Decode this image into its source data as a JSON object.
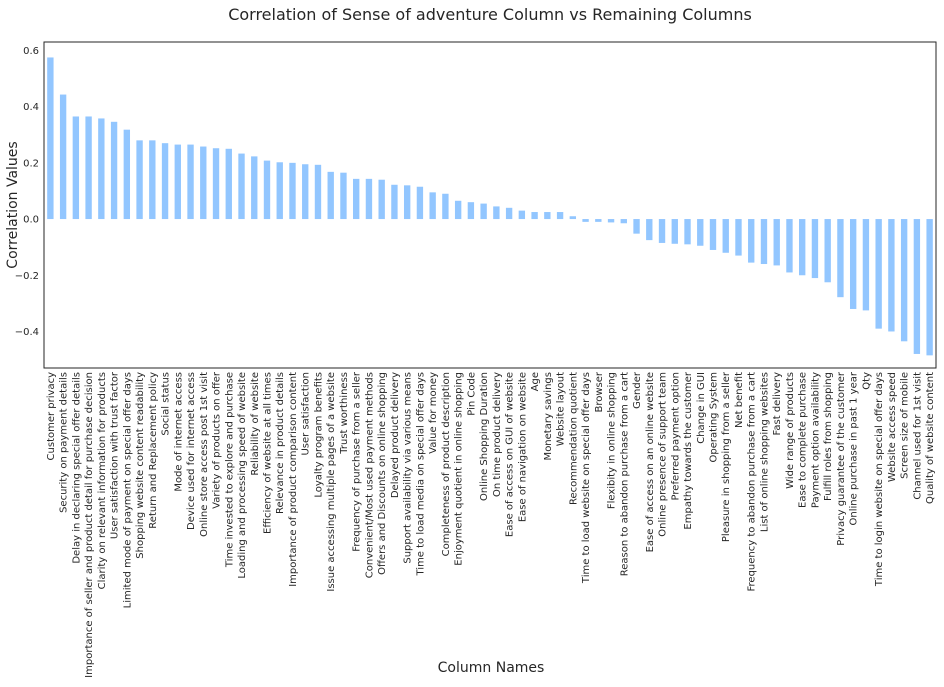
{
  "chart_data": {
    "type": "bar",
    "title": "Correlation of Sense of adventure Column vs Remaining Columns",
    "xlabel": "Column Names",
    "ylabel": "Correlation Values",
    "ylim": [
      -0.53,
      0.63
    ],
    "yticks": [
      "0.6",
      "0.4",
      "0.2",
      "0.0",
      "−0.2",
      "−0.4"
    ],
    "ytick_values": [
      0.6,
      0.4,
      0.2,
      0.0,
      -0.2,
      -0.4
    ],
    "grid": false,
    "bar_color": "#92c6ff",
    "categories": [
      "Customer privacy",
      "Security on payment details",
      "Delay in declaring special offer details",
      "Importance of seller and product detail for purchase decision",
      "Clarity on relevant information for products",
      "User satisfaction with trust factor",
      "Limited mode of payment on special offer days",
      "Shopping website content readability",
      "Return and Replacement policy",
      "Social status",
      "Mode of internet access",
      "Device used for internet access",
      "Online store access post 1st visit",
      "Variety of products on offer",
      "Time invested to explore and purchase",
      "Loading and processing speed of website",
      "Reliability of website",
      "Efficiency of website at all times",
      "Relevance in product details",
      "Importance of product comparison content",
      "User satisfaction",
      "Loyalty program benefits",
      "Issue accessing multiple pages of a website",
      "Trust worthiness",
      "Frequency of purchase from a seller",
      "Convenient/Most used payment methods",
      "Offers and Discounts on online shopping",
      "Delayed product delivery",
      "Support availability via various means",
      "Time to load media on special offer days",
      "Value for money",
      "Completeness of product description",
      "Enjoyment quotient in online shopping",
      "Pin Code",
      "Online Shopping Duration",
      "On time product delivery",
      "Ease of access on GUI of website",
      "Ease of navigation on website",
      "Age",
      "Monetary savings",
      "Website layout",
      "Recommendation quotient",
      "Time to load website on special offer days",
      "Browser",
      "Flexibity in online shopping",
      "Reason to abandon purchase from a cart",
      "Gender",
      "Ease of access on an online website",
      "Online presence of support team",
      "Preferred payment option",
      "Empathy towards the customer",
      "Change in GUI",
      "Operating System",
      "Pleasure in shopping from a seller",
      "Net benefit",
      "Frequency to abandon purchase from a cart",
      "List of online shopping websites",
      "Fast delivery",
      "Wide range of products",
      "Ease to complete purchase",
      "Payment option availability",
      "Fulfill roles from shopping",
      "Privacy guarantee of the customer",
      "Online purchase in past 1 year",
      "Qty",
      "Time to login website on special offer days",
      "Website access speed",
      "Screen size of mobile",
      "Channel used for 1st visit",
      "Quality of website content"
    ],
    "values": [
      0.575,
      0.443,
      0.365,
      0.365,
      0.358,
      0.346,
      0.318,
      0.28,
      0.28,
      0.27,
      0.265,
      0.265,
      0.258,
      0.252,
      0.25,
      0.233,
      0.223,
      0.208,
      0.202,
      0.2,
      0.195,
      0.193,
      0.168,
      0.165,
      0.143,
      0.143,
      0.14,
      0.122,
      0.12,
      0.115,
      0.095,
      0.09,
      0.065,
      0.06,
      0.055,
      0.045,
      0.04,
      0.03,
      0.025,
      0.025,
      0.025,
      0.01,
      -0.01,
      -0.01,
      -0.012,
      -0.015,
      -0.052,
      -0.075,
      -0.085,
      -0.088,
      -0.09,
      -0.095,
      -0.11,
      -0.12,
      -0.13,
      -0.155,
      -0.16,
      -0.165,
      -0.19,
      -0.2,
      -0.21,
      -0.225,
      -0.278,
      -0.32,
      -0.325,
      -0.39,
      -0.4,
      -0.435,
      -0.48,
      -0.485
    ]
  }
}
